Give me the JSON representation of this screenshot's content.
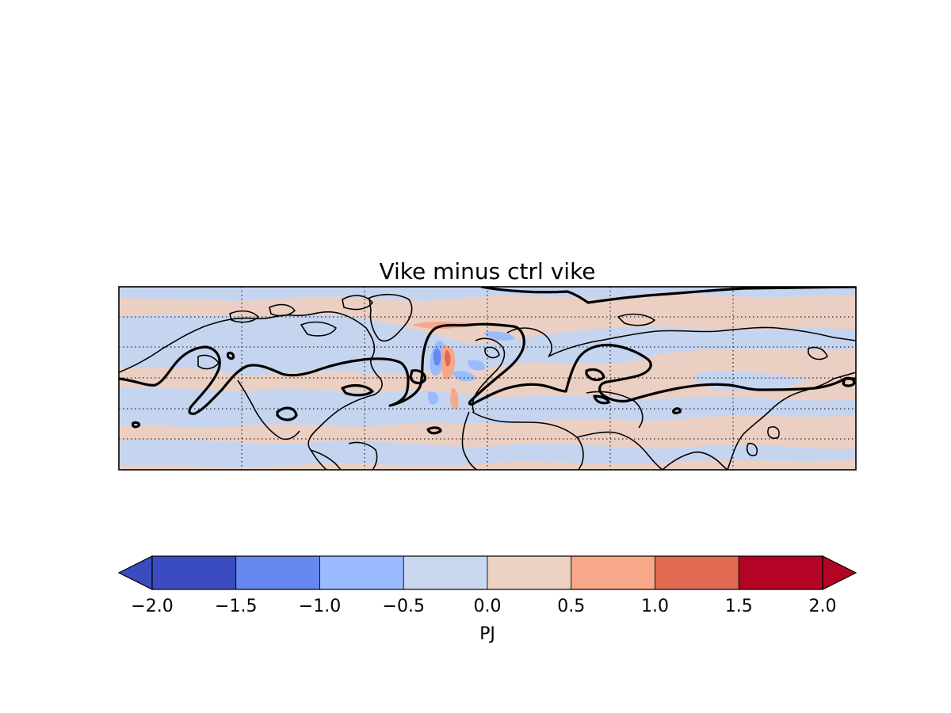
{
  "figure": {
    "title": "Vike minus ctrl vike"
  },
  "map": {
    "projection": "cylindrical",
    "gridlines": "dotted",
    "field_colors": {
      "negative": "#c6d5ef",
      "positive": "#eccfc3"
    },
    "overlays": [
      "coastlines",
      "thick black contour"
    ]
  },
  "colorbar": {
    "label": "PJ",
    "orientation": "horizontal",
    "extend": "both",
    "ticks": [
      "−2.0",
      "−1.5",
      "−1.0",
      "−0.5",
      "0.0",
      "0.5",
      "1.0",
      "1.5",
      "2.0"
    ],
    "levels": [
      -2.0,
      -1.5,
      -1.0,
      -0.5,
      0.0,
      0.5,
      1.0,
      1.5,
      2.0
    ],
    "colors": [
      "#3b4cc0",
      "#6788ee",
      "#9abbff",
      "#c9d7f0",
      "#edd1c2",
      "#f7a889",
      "#e26952",
      "#b40426"
    ],
    "under_color": "#3b4cc0",
    "over_color": "#b40426"
  }
}
